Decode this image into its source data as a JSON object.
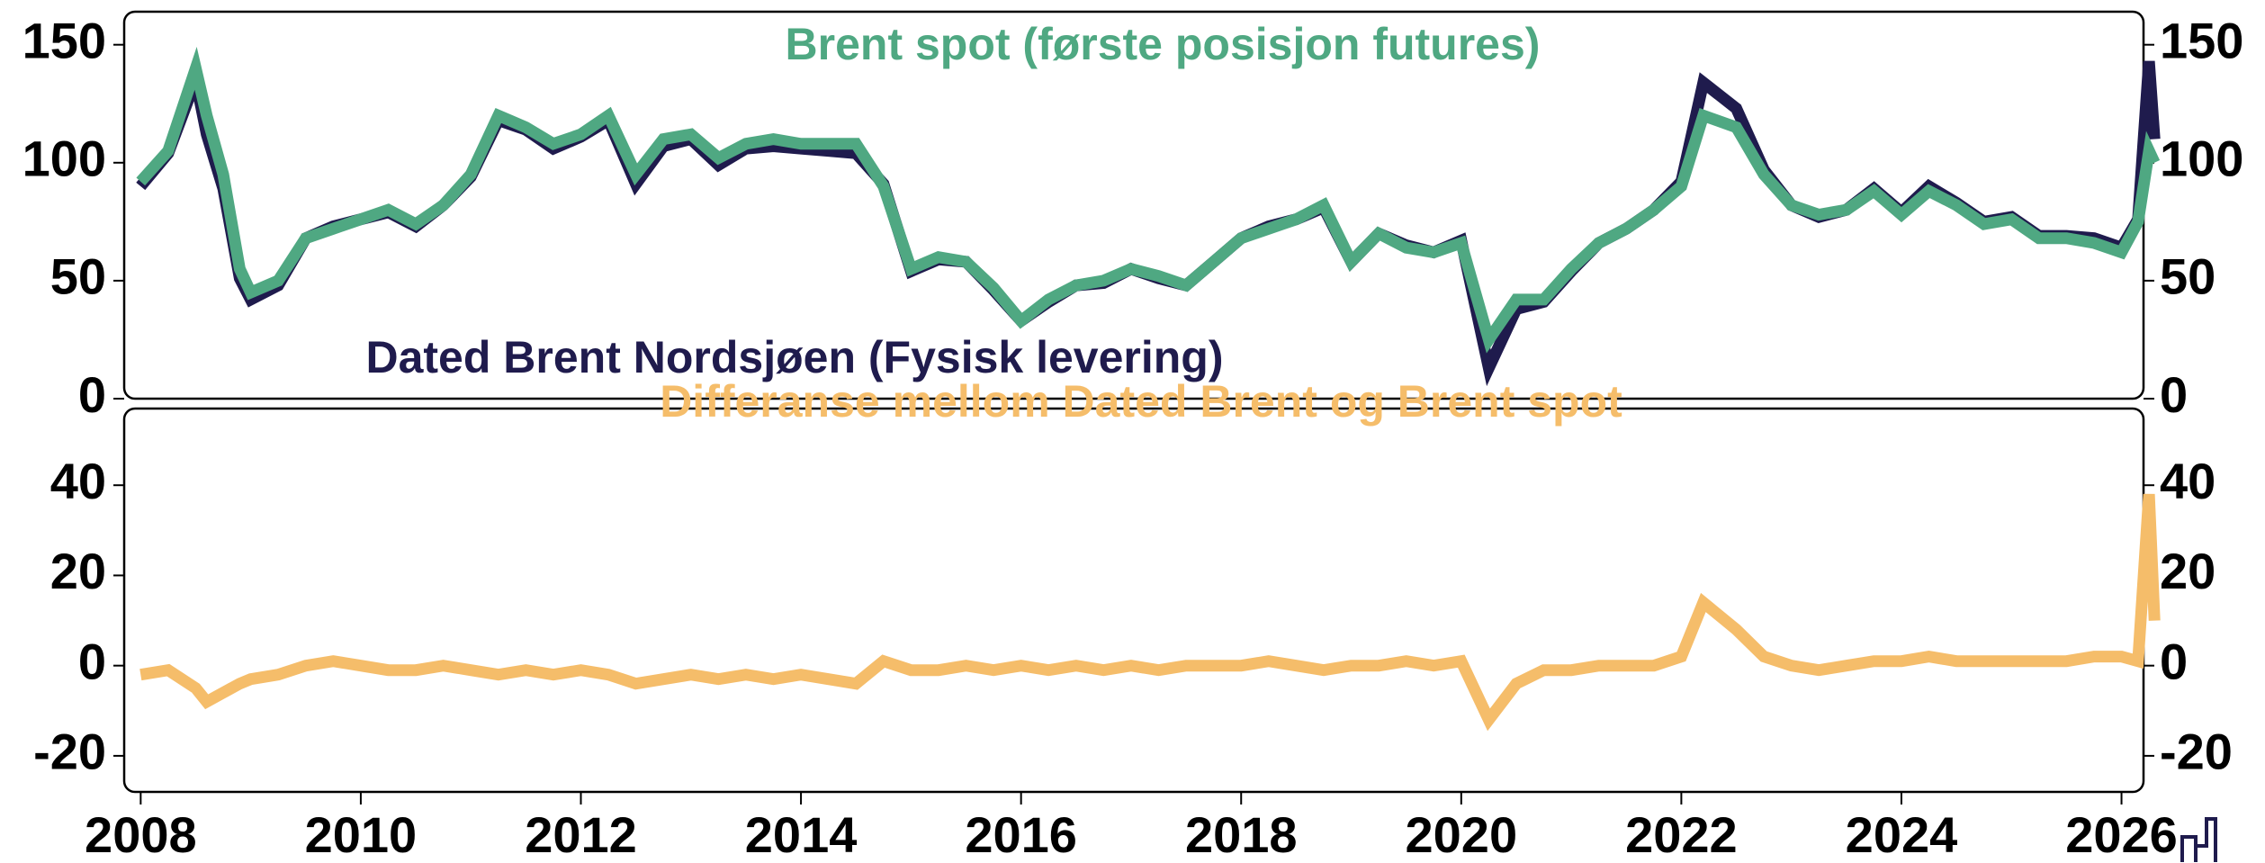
{
  "chart_data": [
    {
      "type": "line",
      "x": [
        2008.0,
        2008.25,
        2008.5,
        2008.6,
        2008.75,
        2008.9,
        2009.0,
        2009.25,
        2009.5,
        2009.75,
        2010.0,
        2010.25,
        2010.5,
        2010.75,
        2011.0,
        2011.25,
        2011.5,
        2011.75,
        2012.0,
        2012.25,
        2012.5,
        2012.75,
        2013.0,
        2013.25,
        2013.5,
        2013.75,
        2014.0,
        2014.25,
        2014.5,
        2014.75,
        2015.0,
        2015.25,
        2015.5,
        2015.75,
        2016.0,
        2016.25,
        2016.5,
        2016.75,
        2017.0,
        2017.25,
        2017.5,
        2017.75,
        2018.0,
        2018.25,
        2018.5,
        2018.75,
        2019.0,
        2019.25,
        2019.5,
        2019.75,
        2020.0,
        2020.25,
        2020.5,
        2020.75,
        2021.0,
        2021.25,
        2021.5,
        2021.75,
        2022.0,
        2022.2,
        2022.5,
        2022.75,
        2023.0,
        2023.25,
        2023.5,
        2023.75,
        2024.0,
        2024.25,
        2024.5,
        2024.75,
        2025.0,
        2025.25,
        2025.5,
        2025.75,
        2026.0,
        2026.15,
        2026.25,
        2026.3
      ],
      "series": [
        {
          "name": "Dated Brent Nordsjøen (Fysisk levering)",
          "color": "#1f1b4d",
          "values": [
            90,
            104,
            135,
            112,
            89,
            51,
            42,
            48,
            68,
            73,
            76,
            79,
            73,
            82,
            94,
            118,
            114,
            106,
            111,
            118,
            91,
            107,
            110,
            99,
            106,
            107,
            106,
            105,
            104,
            91,
            54,
            59,
            58,
            46,
            33,
            41,
            48,
            49,
            55,
            51,
            48,
            58,
            68,
            73,
            76,
            81,
            58,
            70,
            65,
            62,
            67,
            13,
            38,
            41,
            54,
            66,
            72,
            80,
            92,
            134,
            123,
            97,
            82,
            77,
            80,
            89,
            79,
            90,
            83,
            75,
            77,
            69,
            69,
            68,
            64,
            76,
            143,
            110
          ]
        },
        {
          "name": "Brent spot (første posisjon futures)",
          "color": "#4fa882",
          "values": [
            92,
            105,
            140,
            120,
            95,
            55,
            45,
            50,
            68,
            72,
            76,
            80,
            74,
            82,
            95,
            120,
            115,
            108,
            112,
            120,
            95,
            110,
            112,
            102,
            108,
            110,
            108,
            108,
            108,
            90,
            55,
            60,
            58,
            47,
            33,
            42,
            48,
            50,
            55,
            52,
            48,
            58,
            68,
            72,
            76,
            82,
            58,
            70,
            64,
            62,
            66,
            25,
            42,
            42,
            55,
            66,
            72,
            80,
            90,
            120,
            115,
            95,
            82,
            78,
            80,
            88,
            78,
            88,
            82,
            74,
            76,
            68,
            68,
            66,
            62,
            75,
            105,
            100
          ]
        }
      ],
      "xlim": [
        2007.85,
        2026.2
      ],
      "ylim": [
        0,
        164
      ],
      "yticks": [
        0,
        50,
        100,
        150
      ]
    },
    {
      "type": "line",
      "x": [
        2008.0,
        2008.25,
        2008.5,
        2008.6,
        2008.75,
        2008.9,
        2009.0,
        2009.25,
        2009.5,
        2009.75,
        2010.0,
        2010.25,
        2010.5,
        2010.75,
        2011.0,
        2011.25,
        2011.5,
        2011.75,
        2012.0,
        2012.25,
        2012.5,
        2012.75,
        2013.0,
        2013.25,
        2013.5,
        2013.75,
        2014.0,
        2014.25,
        2014.5,
        2014.75,
        2015.0,
        2015.25,
        2015.5,
        2015.75,
        2016.0,
        2016.25,
        2016.5,
        2016.75,
        2017.0,
        2017.25,
        2017.5,
        2017.75,
        2018.0,
        2018.25,
        2018.5,
        2018.75,
        2019.0,
        2019.25,
        2019.5,
        2019.75,
        2020.0,
        2020.25,
        2020.5,
        2020.75,
        2021.0,
        2021.25,
        2021.5,
        2021.75,
        2022.0,
        2022.2,
        2022.5,
        2022.75,
        2023.0,
        2023.25,
        2023.5,
        2023.75,
        2024.0,
        2024.25,
        2024.5,
        2024.75,
        2025.0,
        2025.25,
        2025.5,
        2025.75,
        2026.0,
        2026.15,
        2026.25,
        2026.3
      ],
      "series": [
        {
          "name": "Differanse mellom Dated Brent og Brent spot",
          "color": "#f5bd6a",
          "values": [
            -2,
            -1,
            -5,
            -8,
            -6,
            -4,
            -3,
            -2,
            0,
            1,
            0,
            -1,
            -1,
            0,
            -1,
            -2,
            -1,
            -2,
            -1,
            -2,
            -4,
            -3,
            -2,
            -3,
            -2,
            -3,
            -2,
            -3,
            -4,
            1,
            -1,
            -1,
            0,
            -1,
            0,
            -1,
            0,
            -1,
            0,
            -1,
            0,
            0,
            0,
            1,
            0,
            -1,
            0,
            0,
            1,
            0,
            1,
            -12,
            -4,
            -1,
            -1,
            0,
            0,
            0,
            2,
            14,
            8,
            2,
            0,
            -1,
            0,
            1,
            1,
            2,
            1,
            1,
            1,
            1,
            1,
            2,
            2,
            1,
            38,
            10
          ]
        }
      ],
      "xlim": [
        2007.85,
        2026.2
      ],
      "ylim": [
        -28,
        57
      ],
      "yticks": [
        -20,
        0,
        20,
        40
      ],
      "xticks": [
        2008,
        2010,
        2012,
        2014,
        2016,
        2018,
        2020,
        2022,
        2024,
        2026
      ]
    }
  ]
}
